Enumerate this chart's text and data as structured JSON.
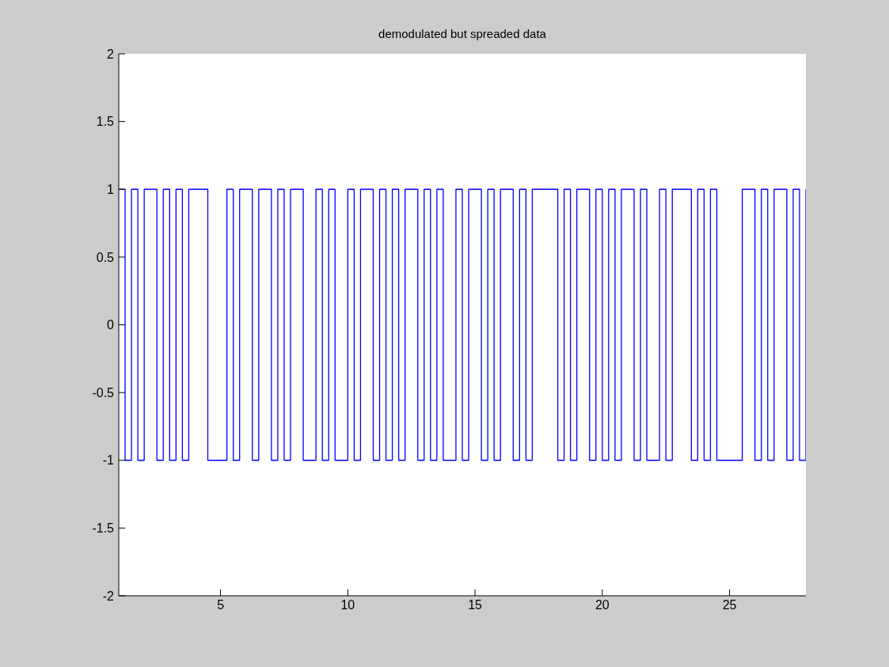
{
  "chart_data": {
    "type": "step",
    "title": "demodulated but spreaded data",
    "x": [
      1,
      1.25,
      1.5,
      1.75,
      2,
      2.25,
      2.5,
      2.75,
      3,
      3.25,
      3.5,
      3.75,
      4,
      4.25,
      4.5,
      4.75,
      5,
      5.25,
      5.5,
      5.75,
      6,
      6.25,
      6.5,
      6.75,
      7,
      7.25,
      7.5,
      7.75,
      8,
      8.25,
      8.5,
      8.75,
      9,
      9.25,
      9.5,
      9.75,
      10,
      10.25,
      10.5,
      10.75,
      11,
      11.25,
      11.5,
      11.75,
      12,
      12.25,
      12.5,
      12.75,
      13,
      13.25,
      13.5,
      13.75,
      14,
      14.25,
      14.5,
      14.75,
      15,
      15.25,
      15.5,
      15.75,
      16,
      16.25,
      16.5,
      16.75,
      17,
      17.25,
      17.5,
      17.75,
      18,
      18.25,
      18.5,
      18.75,
      19,
      19.25,
      19.5,
      19.75,
      20,
      20.25,
      20.5,
      20.75,
      21,
      21.25,
      21.5,
      21.75,
      22,
      22.25,
      22.5,
      22.75,
      23,
      23.25,
      23.5,
      23.75,
      24,
      24.25,
      24.5,
      24.75,
      25,
      25.25,
      25.5,
      25.75,
      26,
      26.25,
      26.5,
      26.75,
      27,
      27.25,
      27.5,
      27.75,
      28
    ],
    "series": [
      {
        "color": "#0000ff",
        "values": [
          1,
          -1,
          1,
          -1,
          1,
          1,
          -1,
          1,
          -1,
          1,
          -1,
          1,
          1,
          1,
          -1,
          -1,
          -1,
          1,
          -1,
          1,
          1,
          -1,
          1,
          1,
          -1,
          1,
          -1,
          1,
          1,
          -1,
          -1,
          1,
          -1,
          1,
          -1,
          -1,
          1,
          -1,
          1,
          1,
          -1,
          1,
          -1,
          1,
          -1,
          1,
          1,
          -1,
          1,
          -1,
          1,
          -1,
          -1,
          1,
          -1,
          1,
          1,
          -1,
          1,
          -1,
          1,
          1,
          -1,
          1,
          -1,
          1,
          1,
          1,
          1,
          -1,
          1,
          -1,
          1,
          1,
          -1,
          1,
          -1,
          1,
          -1,
          1,
          1,
          -1,
          1,
          -1,
          -1,
          1,
          -1,
          1,
          1,
          1,
          -1,
          1,
          -1,
          1,
          -1,
          -1,
          -1,
          -1,
          1,
          1,
          -1,
          1,
          -1,
          1,
          1,
          -1,
          1,
          -1,
          1
        ]
      }
    ],
    "xlim": [
      1,
      28
    ],
    "xticks": [
      5,
      10,
      15,
      20,
      25
    ],
    "ylim": [
      -2,
      2
    ],
    "yticks": [
      -2,
      -1.5,
      -1,
      -0.5,
      0,
      0.5,
      1,
      1.5,
      2
    ],
    "grid": false
  }
}
